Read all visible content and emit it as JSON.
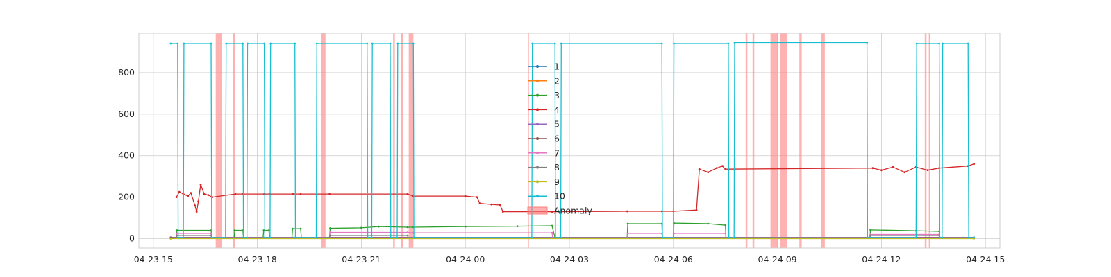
{
  "chart_data": {
    "type": "line",
    "title": "",
    "xlabel": "",
    "ylabel": "",
    "xlim": [
      "04-23 14:35",
      "04-24 15:25"
    ],
    "ylim": [
      -45,
      990
    ],
    "yticks": [
      0,
      200,
      400,
      600,
      800
    ],
    "xticks": [
      "04-23 15",
      "04-23 18",
      "04-23 21",
      "04-24 00",
      "04-24 03",
      "04-24 06",
      "04-24 09",
      "04-24 12",
      "04-24 15"
    ],
    "grid": true,
    "legend": {
      "placement": "upper-center",
      "entries": [
        "1",
        "2",
        "3",
        "4",
        "5",
        "6",
        "7",
        "8",
        "9",
        "10",
        "Anomaly"
      ]
    },
    "series_colors": [
      "#1f77b4",
      "#ff7f0e",
      "#2ca02c",
      "#d62728",
      "#9467bd",
      "#8c564b",
      "#e377c2",
      "#7f7f7f",
      "#bcbd22",
      "#17becf"
    ],
    "anomaly_color": "#ff7f7f",
    "anomaly_intervals": [
      [
        "04-23 16:48",
        "04-23 16:58"
      ],
      [
        "04-23 17:18",
        "04-23 17:22"
      ],
      [
        "04-23 19:50",
        "04-23 19:58"
      ],
      [
        "04-23 21:55",
        "04-23 21:58"
      ],
      [
        "04-23 22:08",
        "04-23 22:12"
      ],
      [
        "04-23 22:22",
        "04-23 22:30"
      ],
      [
        "04-24 01:48",
        "04-24 01:50"
      ],
      [
        "04-24 08:05",
        "04-24 08:08"
      ],
      [
        "04-24 08:17",
        "04-24 08:20"
      ],
      [
        "04-24 08:48",
        "04-24 09:00"
      ],
      [
        "04-24 09:05",
        "04-24 09:17"
      ],
      [
        "04-24 09:38",
        "04-24 09:42"
      ],
      [
        "04-24 10:15",
        "04-24 10:22"
      ],
      [
        "04-24 13:15",
        "04-24 13:18"
      ],
      [
        "04-24 13:22",
        "04-24 13:24"
      ]
    ],
    "series": [
      {
        "name": "1",
        "points": [
          [
            "04-23 15:30",
            3
          ],
          [
            "04-24 14:40",
            3
          ]
        ]
      },
      {
        "name": "2",
        "points": [
          [
            "04-23 15:30",
            2
          ],
          [
            "04-24 14:40",
            2
          ]
        ]
      },
      {
        "name": "3",
        "points": [
          [
            "04-23 15:40",
            5
          ],
          [
            "04-23 15:41",
            40
          ],
          [
            "04-23 16:40",
            40
          ],
          [
            "04-23 16:41",
            5
          ],
          [
            "04-23 17:20",
            5
          ],
          [
            "04-23 17:21",
            40
          ],
          [
            "04-23 17:35",
            40
          ],
          [
            "04-23 17:36",
            5
          ],
          [
            "04-23 18:10",
            5
          ],
          [
            "04-23 18:11",
            40
          ],
          [
            "04-23 18:20",
            40
          ],
          [
            "04-23 18:21",
            5
          ],
          [
            "04-23 19:00",
            5
          ],
          [
            "04-23 19:01",
            48
          ],
          [
            "04-23 19:15",
            48
          ],
          [
            "04-23 19:16",
            5
          ],
          [
            "04-23 20:05",
            5
          ],
          [
            "04-23 20:06",
            50
          ],
          [
            "04-23 21:00",
            52
          ],
          [
            "04-23 21:30",
            58
          ],
          [
            "04-23 22:20",
            55
          ],
          [
            "04-23 22:30",
            55
          ],
          [
            "04-24 00:00",
            58
          ],
          [
            "04-24 01:30",
            60
          ],
          [
            "04-24 02:30",
            62
          ],
          [
            "04-24 02:35",
            5
          ],
          [
            "04-24 04:40",
            5
          ],
          [
            "04-24 04:41",
            72
          ],
          [
            "04-24 05:40",
            72
          ],
          [
            "04-24 05:41",
            5
          ],
          [
            "04-24 06:00",
            5
          ],
          [
            "04-24 06:01",
            75
          ],
          [
            "04-24 07:00",
            72
          ],
          [
            "04-24 07:30",
            65
          ],
          [
            "04-24 07:31",
            5
          ],
          [
            "04-24 11:40",
            5
          ],
          [
            "04-24 11:41",
            42
          ],
          [
            "04-24 13:00",
            38
          ],
          [
            "04-24 13:40",
            35
          ],
          [
            "04-24 13:41",
            5
          ],
          [
            "04-24 14:40",
            5
          ]
        ]
      },
      {
        "name": "4",
        "points": [
          [
            "04-23 15:40",
            200
          ],
          [
            "04-23 15:45",
            225
          ],
          [
            "04-23 15:52",
            215
          ],
          [
            "04-23 16:00",
            205
          ],
          [
            "04-23 16:05",
            220
          ],
          [
            "04-23 16:12",
            160
          ],
          [
            "04-23 16:15",
            130
          ],
          [
            "04-23 16:18",
            180
          ],
          [
            "04-23 16:22",
            260
          ],
          [
            "04-23 16:28",
            215
          ],
          [
            "04-23 16:35",
            210
          ],
          [
            "04-23 16:42",
            200
          ],
          [
            "04-23 17:22",
            215
          ],
          [
            "04-23 17:35",
            215
          ],
          [
            "04-23 18:12",
            215
          ],
          [
            "04-23 18:22",
            215
          ],
          [
            "04-23 19:02",
            215
          ],
          [
            "04-23 19:15",
            215
          ],
          [
            "04-23 20:05",
            215
          ],
          [
            "04-23 22:20",
            215
          ],
          [
            "04-23 22:30",
            205
          ],
          [
            "04-24 00:00",
            205
          ],
          [
            "04-24 00:20",
            200
          ],
          [
            "04-24 00:25",
            170
          ],
          [
            "04-24 00:45",
            165
          ],
          [
            "04-24 01:00",
            162
          ],
          [
            "04-24 01:05",
            130
          ],
          [
            "04-24 02:30",
            130
          ],
          [
            "04-24 04:40",
            132
          ],
          [
            "04-24 05:40",
            132
          ],
          [
            "04-24 06:00",
            132
          ],
          [
            "04-24 06:40",
            138
          ],
          [
            "04-24 06:45",
            335
          ],
          [
            "04-24 07:00",
            320
          ],
          [
            "04-24 07:15",
            340
          ],
          [
            "04-24 07:25",
            350
          ],
          [
            "04-24 07:30",
            335
          ],
          [
            "04-24 11:45",
            340
          ],
          [
            "04-24 12:00",
            330
          ],
          [
            "04-24 12:20",
            345
          ],
          [
            "04-24 12:40",
            320
          ],
          [
            "04-24 13:00",
            345
          ],
          [
            "04-24 13:20",
            330
          ],
          [
            "04-24 13:40",
            340
          ],
          [
            "04-24 14:30",
            350
          ],
          [
            "04-24 14:40",
            360
          ]
        ]
      },
      {
        "name": "5",
        "points": [
          [
            "04-23 15:30",
            6
          ],
          [
            "04-24 14:40",
            6
          ]
        ]
      },
      {
        "name": "6",
        "points": [
          [
            "04-23 15:30",
            4
          ],
          [
            "04-24 14:40",
            4
          ]
        ]
      },
      {
        "name": "7",
        "points": [
          [
            "04-23 15:40",
            5
          ],
          [
            "04-23 15:41",
            25
          ],
          [
            "04-23 16:40",
            25
          ],
          [
            "04-23 16:41",
            5
          ],
          [
            "04-23 20:05",
            5
          ],
          [
            "04-23 20:06",
            30
          ],
          [
            "04-23 22:20",
            30
          ],
          [
            "04-23 22:30",
            28
          ],
          [
            "04-24 02:30",
            28
          ],
          [
            "04-24 02:31",
            5
          ],
          [
            "04-24 04:40",
            5
          ],
          [
            "04-24 04:41",
            25
          ],
          [
            "04-24 05:40",
            25
          ],
          [
            "04-24 05:41",
            5
          ],
          [
            "04-24 06:00",
            5
          ],
          [
            "04-24 06:01",
            25
          ],
          [
            "04-24 07:30",
            25
          ],
          [
            "04-24 07:31",
            5
          ],
          [
            "04-24 11:40",
            5
          ],
          [
            "04-24 11:41",
            20
          ],
          [
            "04-24 13:40",
            20
          ],
          [
            "04-24 13:41",
            5
          ],
          [
            "04-24 14:40",
            5
          ]
        ]
      },
      {
        "name": "8",
        "points": [
          [
            "04-23 15:40",
            5
          ],
          [
            "04-23 15:41",
            15
          ],
          [
            "04-23 16:40",
            15
          ],
          [
            "04-23 16:41",
            5
          ],
          [
            "04-23 20:05",
            5
          ],
          [
            "04-23 20:06",
            15
          ],
          [
            "04-23 22:20",
            15
          ],
          [
            "04-23 22:21",
            5
          ],
          [
            "04-24 11:40",
            5
          ],
          [
            "04-24 11:41",
            15
          ],
          [
            "04-24 13:40",
            15
          ],
          [
            "04-24 13:41",
            5
          ],
          [
            "04-24 14:40",
            5
          ]
        ]
      },
      {
        "name": "9",
        "points": [
          [
            "04-23 15:30",
            0
          ],
          [
            "04-24 14:40",
            0
          ]
        ]
      },
      {
        "name": "10",
        "points": [
          [
            "04-23 15:30",
            940
          ],
          [
            "04-23 15:42",
            940
          ],
          [
            "04-23 15:43",
            5
          ],
          [
            "04-23 15:52",
            5
          ],
          [
            "04-23 15:53",
            940
          ],
          [
            "04-23 16:40",
            940
          ],
          [
            "04-23 16:41",
            5
          ],
          [
            "04-23 17:05",
            5
          ],
          [
            "04-23 17:06",
            940
          ],
          [
            "04-23 17:35",
            940
          ],
          [
            "04-23 17:36",
            5
          ],
          [
            "04-23 17:42",
            5
          ],
          [
            "04-23 17:43",
            940
          ],
          [
            "04-23 18:12",
            940
          ],
          [
            "04-23 18:13",
            5
          ],
          [
            "04-23 18:22",
            5
          ],
          [
            "04-23 18:23",
            940
          ],
          [
            "04-23 19:05",
            940
          ],
          [
            "04-23 19:06",
            5
          ],
          [
            "04-23 19:42",
            5
          ],
          [
            "04-23 19:43",
            940
          ],
          [
            "04-23 21:10",
            940
          ],
          [
            "04-23 21:11",
            5
          ],
          [
            "04-23 21:18",
            5
          ],
          [
            "04-23 21:19",
            940
          ],
          [
            "04-23 21:50",
            940
          ],
          [
            "04-23 21:51",
            5
          ],
          [
            "04-23 22:02",
            5
          ],
          [
            "04-23 22:03",
            940
          ],
          [
            "04-23 22:30",
            940
          ],
          [
            "04-23 22:31",
            5
          ],
          [
            "04-24 01:55",
            5
          ],
          [
            "04-24 01:56",
            940
          ],
          [
            "04-24 02:35",
            940
          ],
          [
            "04-24 02:36",
            5
          ],
          [
            "04-24 02:45",
            5
          ],
          [
            "04-24 02:46",
            940
          ],
          [
            "04-24 05:40",
            940
          ],
          [
            "04-24 05:41",
            5
          ],
          [
            "04-24 06:00",
            5
          ],
          [
            "04-24 06:01",
            940
          ],
          [
            "04-24 07:35",
            940
          ],
          [
            "04-24 07:36",
            5
          ],
          [
            "04-24 07:45",
            5
          ],
          [
            "04-24 07:46",
            945
          ],
          [
            "04-24 11:35",
            945
          ],
          [
            "04-24 11:36",
            5
          ],
          [
            "04-24 13:00",
            5
          ],
          [
            "04-24 13:01",
            940
          ],
          [
            "04-24 13:40",
            940
          ],
          [
            "04-24 13:41",
            5
          ],
          [
            "04-24 13:45",
            5
          ],
          [
            "04-24 13:46",
            940
          ],
          [
            "04-24 14:30",
            940
          ],
          [
            "04-24 14:31",
            5
          ],
          [
            "04-24 14:40",
            5
          ]
        ]
      }
    ]
  }
}
